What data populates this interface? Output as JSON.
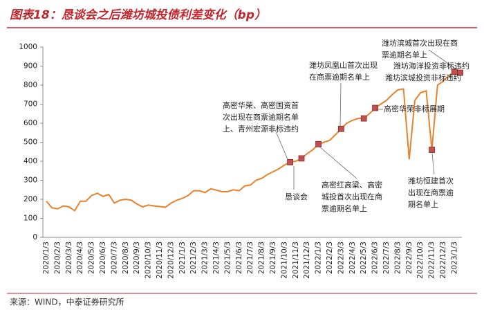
{
  "chart_data": {
    "type": "line",
    "title": "图表18：恳谈会之后潍坊城投债利差变化（bp）",
    "source": "来源：WIND，中泰证券研究所",
    "categories": [
      "2020/1/3",
      null,
      "2020/2/3",
      null,
      "2020/3/3",
      null,
      "2020/4/3",
      null,
      "2020/5/3",
      null,
      "2020/6/3",
      null,
      "2020/7/3",
      null,
      "2020/8/3",
      null,
      "2020/9/3",
      null,
      "2020/10/3",
      null,
      "2020/11/3",
      null,
      "2020/12/3",
      null,
      "2021/1/3",
      null,
      "2021/2/3",
      null,
      "2021/3/3",
      null,
      "2021/4/3",
      null,
      "2021/5/3",
      null,
      "2021/6/3",
      null,
      "2021/7/3",
      null,
      "2021/8/3",
      null,
      "2021/9/3",
      null,
      "2021/10/3",
      null,
      "2021/11/3",
      null,
      "2021/12/3",
      null,
      "2022/1/3",
      null,
      "2022/2/3",
      null,
      "2022/3/3",
      null,
      "2022/4/3",
      null,
      "2022/5/3",
      null,
      "2022/6/3",
      null,
      "2022/7/3",
      null,
      "2022/8/3",
      null,
      "2022/9/3",
      null,
      "2022/10/3",
      null,
      "2022/11/3",
      null,
      "2022/12/3",
      null,
      "2023/1/3",
      null
    ],
    "series": [
      {
        "color": "#e8822a",
        "values": [
          190,
          155,
          150,
          165,
          160,
          140,
          190,
          190,
          220,
          232,
          215,
          225,
          180,
          195,
          200,
          195,
          175,
          160,
          170,
          165,
          162,
          158,
          180,
          195,
          205,
          220,
          245,
          245,
          235,
          255,
          248,
          240,
          240,
          250,
          245,
          270,
          275,
          300,
          310,
          330,
          345,
          360,
          380,
          395,
          400,
          415,
          440,
          460,
          490,
          500,
          510,
          540,
          570,
          600,
          615,
          625,
          625,
          650,
          680,
          700,
          720,
          750,
          775,
          780,
          410,
          720,
          760,
          770,
          460,
          800,
          820,
          850,
          870,
          865
        ]
      },
      {
        "color": "#c0504d",
        "marker": "square",
        "values": [
          null,
          null,
          null,
          null,
          null,
          null,
          null,
          null,
          null,
          null,
          null,
          null,
          null,
          null,
          null,
          null,
          null,
          null,
          null,
          null,
          null,
          null,
          null,
          null,
          null,
          null,
          null,
          null,
          null,
          null,
          null,
          null,
          null,
          null,
          null,
          null,
          null,
          null,
          null,
          null,
          null,
          null,
          null,
          395,
          null,
          415,
          null,
          null,
          490,
          null,
          null,
          null,
          570,
          null,
          null,
          null,
          625,
          null,
          680,
          null,
          null,
          null,
          null,
          null,
          null,
          null,
          null,
          null,
          460,
          null,
          null,
          null,
          870,
          865
        ]
      }
    ],
    "ylim": [
      0,
      1000
    ],
    "yticks": [
      0,
      100,
      200,
      300,
      400,
      500,
      600,
      700,
      800,
      900,
      1000
    ],
    "annotations": [
      [
        "高密华荣、高密国资首",
        "次出现在商票逾期名单",
        "上、青州宏源非标违约"
      ],
      [
        "恳谈会"
      ],
      [
        "高密红高粱、高密",
        "城投首次出现在商",
        "票逾期名单上"
      ],
      [
        "潍坊凤凰山首次出现",
        "在商票逾期名单上"
      ],
      [
        "潍坊滨城首次出现在商",
        "票逾期名单上"
      ],
      [
        "潍坊海洋投资非标违约"
      ],
      [
        "潍坊滨城投资非标违约"
      ],
      [
        "高密华荣非标展期"
      ],
      [
        "潍坊恒建首次",
        "出现在商票逾",
        "期名单上"
      ]
    ]
  }
}
